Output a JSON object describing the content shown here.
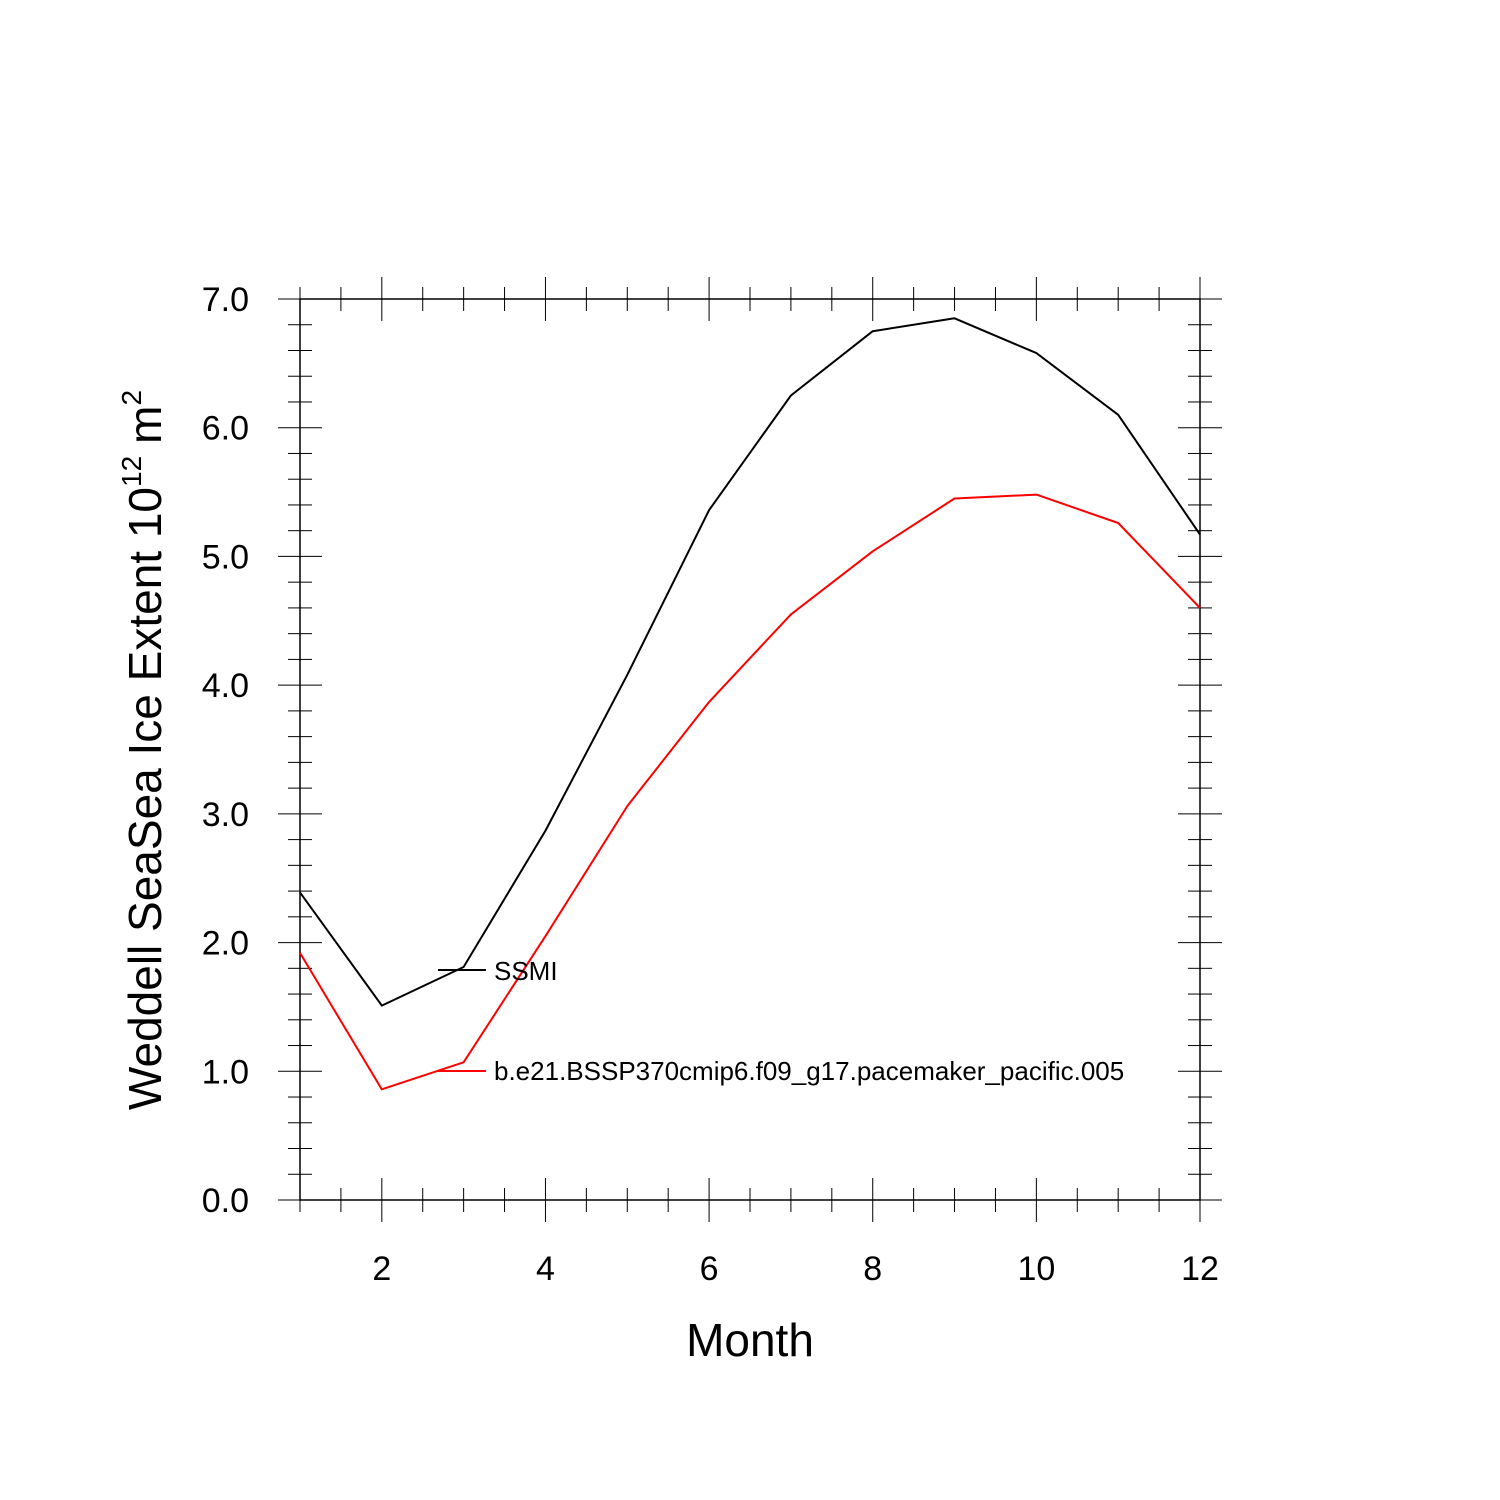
{
  "chart_data": {
    "type": "line",
    "title": "",
    "xlabel": "Month",
    "ylabel": {
      "prefix": "Weddell SeaSea Ice Extent 10",
      "exponent": "12",
      "unit": "m",
      "unit_exponent": "2"
    },
    "xlim": [
      1,
      12
    ],
    "ylim": [
      0,
      7
    ],
    "xticks": [
      2,
      4,
      6,
      8,
      10,
      12
    ],
    "xtick_labels": [
      "2",
      "4",
      "6",
      "8",
      "10",
      "12"
    ],
    "yticks": [
      0,
      1,
      2,
      3,
      4,
      5,
      6,
      7
    ],
    "ytick_labels": [
      "0.0",
      "1.0",
      "2.0",
      "3.0",
      "4.0",
      "5.0",
      "6.0",
      "7.0"
    ],
    "grid": false,
    "legend_position": "inside, center-left",
    "x": [
      1,
      2,
      3,
      4,
      5,
      6,
      7,
      8,
      9,
      10,
      11,
      12
    ],
    "series": [
      {
        "name": "SSMI",
        "color": "#000000",
        "values": [
          2.39,
          1.51,
          1.81,
          2.87,
          4.08,
          5.36,
          6.25,
          6.75,
          6.85,
          6.58,
          6.1,
          5.17
        ]
      },
      {
        "name": "b.e21.BSSP370cmip6.f09_g17.pacemaker_pacific.005",
        "color": "#ff0000",
        "values": [
          1.92,
          0.86,
          1.07,
          2.05,
          3.06,
          3.87,
          4.55,
          5.04,
          5.45,
          5.48,
          5.26,
          4.6
        ]
      }
    ]
  }
}
